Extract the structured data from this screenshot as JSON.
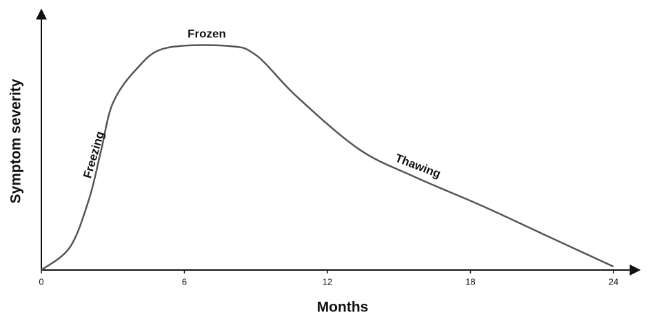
{
  "chart_data": {
    "type": "line",
    "x_label": "Months",
    "y_label": "Symptom severity",
    "annotations": [
      "Frozen",
      "Freezing",
      "Thawing"
    ],
    "x": [
      0,
      1.2,
      2.0,
      2.5,
      3.0,
      4.0,
      5.2,
      7.8,
      9.0,
      10.7,
      13.3,
      15.6,
      18.5,
      21.4,
      24
    ],
    "series": [
      {
        "color": "#555555",
        "values": [
          0,
          10,
          31,
          52,
          73,
          88,
          97,
          98,
          94,
          76,
          53,
          41,
          28,
          14,
          1.5
        ]
      }
    ],
    "xlim": [
      0,
      24
    ],
    "xticks": [
      0,
      6,
      12,
      18,
      24
    ],
    "ylim": [
      0,
      100
    ]
  }
}
